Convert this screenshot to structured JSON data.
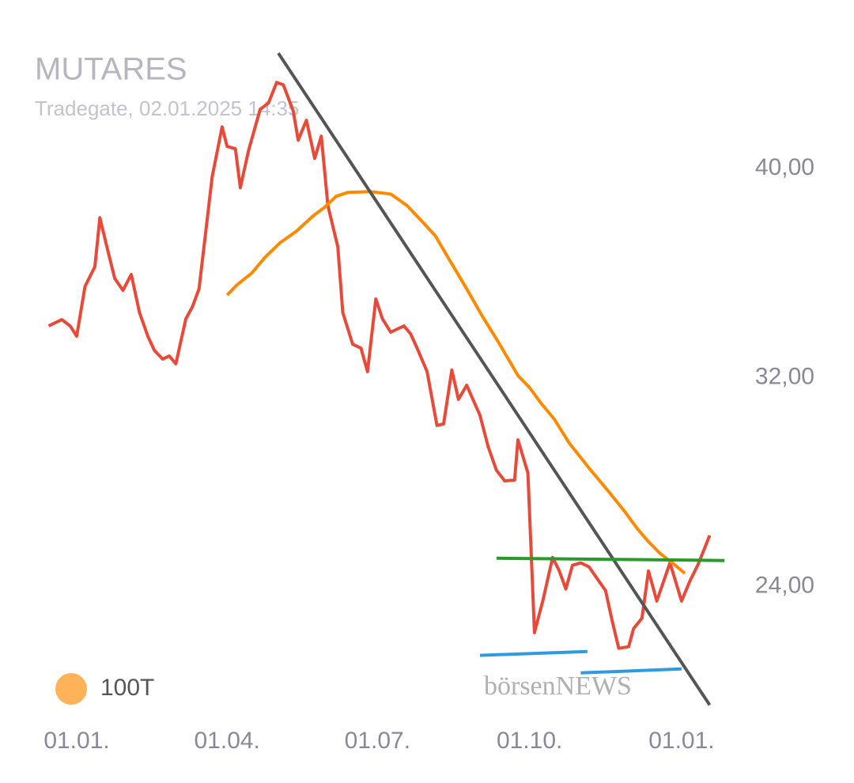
{
  "chart_data": {
    "type": "line",
    "title": "MUTARES",
    "subtitle": "Tradegate, 02.01.2025 14:35",
    "watermark": "börsenNEWS",
    "xlim": [
      -27,
      398
    ],
    "xticks": [
      {
        "value": 0,
        "label": "01.01."
      },
      {
        "value": 91,
        "label": "01.04."
      },
      {
        "value": 182,
        "label": "01.07."
      },
      {
        "value": 274,
        "label": "01.10."
      },
      {
        "value": 366,
        "label": "01.01."
      }
    ],
    "ylim": [
      17,
      46
    ],
    "yticks": [
      {
        "value": 24,
        "label": "24,00"
      },
      {
        "value": 32,
        "label": "32,00"
      },
      {
        "value": 40,
        "label": "40,00"
      }
    ],
    "grid": false,
    "legend": "bottom-left",
    "series": [
      {
        "color": "#e84a3a",
        "x": [
          -17,
          -9,
          -4,
          0,
          5,
          11,
          14,
          19,
          23,
          28,
          33,
          38,
          43,
          47,
          52,
          56,
          60,
          66,
          70,
          74,
          82,
          88,
          91,
          96,
          99,
          104,
          111,
          116,
          121,
          125,
          131,
          134,
          139,
          144,
          148,
          152,
          158,
          161,
          167,
          172,
          176,
          181,
          185,
          190,
          194,
          198,
          202,
          206,
          212,
          218,
          222,
          227,
          231,
          236,
          244,
          249,
          254,
          259,
          265,
          267,
          273,
          277,
          282,
          288,
          292,
          296,
          300,
          305,
          310,
          315,
          320,
          324,
          328,
          334,
          337,
          342,
          346,
          351,
          359,
          366,
          371,
          376,
          383
        ],
        "values": [
          33.98,
          34.22,
          33.98,
          33.59,
          35.49,
          36.25,
          38.12,
          36.82,
          35.8,
          35.34,
          35.95,
          34.49,
          33.59,
          33.04,
          32.71,
          32.83,
          32.53,
          34.25,
          34.71,
          35.4,
          39.7,
          41.6,
          40.85,
          40.76,
          39.27,
          40.7,
          42.27,
          42.51,
          43.3,
          43.21,
          42.21,
          41.09,
          41.85,
          40.39,
          41.24,
          38.58,
          37.01,
          34.49,
          33.28,
          33.13,
          32.23,
          35.01,
          34.25,
          33.74,
          33.86,
          33.98,
          33.68,
          33.13,
          32.23,
          30.17,
          30.23,
          32.29,
          31.17,
          31.71,
          30.56,
          29.35,
          28.45,
          28.05,
          28.08,
          29.62,
          28.35,
          22.24,
          23.45,
          25.12,
          24.6,
          23.91,
          24.82,
          24.91,
          24.76,
          24.3,
          23.85,
          22.7,
          21.64,
          21.7,
          22.4,
          22.79,
          24.6,
          23.45,
          24.91,
          23.45,
          24.21,
          24.85,
          25.96
        ]
      },
      {
        "name": "100T",
        "color": "#ff8a00",
        "x": [
          91,
          97,
          106,
          114,
          123,
          133,
          143,
          150,
          157,
          164,
          178,
          190,
          200,
          210,
          217,
          226,
          236,
          245,
          255,
          267,
          274,
          281,
          289,
          298,
          310,
          322,
          332,
          339,
          346,
          353,
          361,
          368
        ],
        "values": [
          35.16,
          35.55,
          36.01,
          36.61,
          37.16,
          37.61,
          38.19,
          38.52,
          38.94,
          39.09,
          39.12,
          39.03,
          38.58,
          37.91,
          37.43,
          36.46,
          35.4,
          34.4,
          33.38,
          32.08,
          31.62,
          31.02,
          30.41,
          29.5,
          28.54,
          27.63,
          26.84,
          26.24,
          25.72,
          25.27,
          24.88,
          24.51
        ]
      },
      {
        "color": "#555555",
        "x": [
          122,
          383
        ],
        "values": [
          44.42,
          19.47
        ]
      },
      {
        "color": "#2a9a2a",
        "x": [
          254,
          392
        ],
        "values": [
          25.09,
          25.0
        ]
      },
      {
        "color": "#2e9be0",
        "x": [
          244,
          309
        ],
        "values": [
          21.37,
          21.52
        ]
      },
      {
        "color": "#2e9be0",
        "x": [
          305,
          366
        ],
        "values": [
          20.7,
          20.85
        ]
      }
    ]
  }
}
